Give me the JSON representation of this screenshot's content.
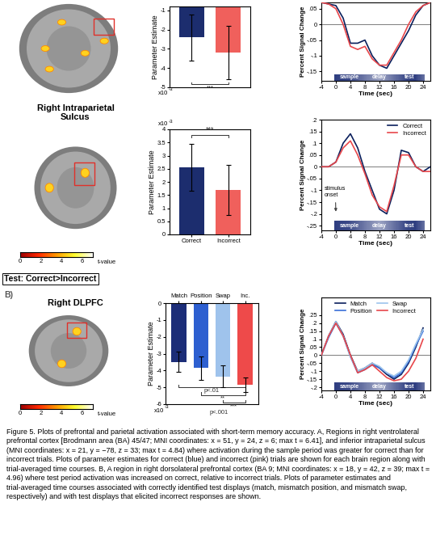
{
  "chart_data": [
    {
      "type": "bar",
      "categories": [
        null,
        null
      ],
      "values": [
        -2.4,
        -3.2
      ],
      "errors": [
        1.2,
        1.4
      ],
      "colors": [
        "#1c2d6e",
        "#f0605c"
      ],
      "ylabel": "Parameter Estimate",
      "ylim": [
        -5,
        -0.8
      ],
      "yticks": [
        -5,
        -4,
        -3,
        -2,
        -1
      ],
      "scale_label": {
        "base": "x10",
        "exponent": "-3"
      },
      "brackets": [
        {
          "x": [
            0,
            1
          ],
          "y": -4.85,
          "label": "***"
        }
      ]
    },
    {
      "type": "line",
      "x": [
        -4,
        -2,
        0,
        2,
        4,
        6,
        8,
        10,
        12,
        14,
        16,
        18,
        20,
        22,
        24,
        26
      ],
      "series": [
        {
          "color": "#0a1f5c",
          "values": [
            0.07,
            0.065,
            0.06,
            0.02,
            -0.06,
            -0.06,
            -0.05,
            -0.1,
            -0.13,
            -0.14,
            -0.1,
            -0.06,
            -0.02,
            0.03,
            0.06,
            0.07
          ]
        },
        {
          "color": "#e8474b",
          "values": [
            0.07,
            0.065,
            0.05,
            0.0,
            -0.07,
            -0.08,
            -0.07,
            -0.11,
            -0.13,
            -0.13,
            -0.09,
            -0.05,
            0.0,
            0.04,
            0.06,
            0.07
          ]
        }
      ],
      "xlabel": "Time (sec)",
      "ylabel": "Percent Signal Change",
      "xlim": [
        -4,
        26
      ],
      "xticks": [
        -4,
        0,
        4,
        8,
        12,
        16,
        20,
        24
      ],
      "ylim": [
        -0.18,
        0.07
      ],
      "yticks": [
        {
          "value": 0.05,
          "label": ".05"
        },
        0,
        {
          "value": -0.05,
          "label": "-.05"
        },
        {
          "value": -0.1,
          "label": "-.1"
        },
        {
          "value": -0.15,
          "label": "-.15"
        }
      ],
      "phases": [
        "sample",
        "delay",
        "test"
      ]
    },
    {
      "type": "bar",
      "categories": [
        "Correct",
        "Incorrect"
      ],
      "values": [
        2.55,
        1.7
      ],
      "errors": [
        0.9,
        0.95
      ],
      "colors": [
        "#1c2d6e",
        "#f0605c"
      ],
      "ylabel": "Parameter Estimate",
      "ylim": [
        0,
        4
      ],
      "yticks": [
        0,
        0.5,
        1,
        1.5,
        2,
        2.5,
        3,
        3.5,
        4
      ],
      "scale_label": {
        "base": "x10",
        "exponent": "-3"
      },
      "brackets": [
        {
          "x": [
            0,
            1
          ],
          "y": 3.8,
          "label": "***"
        }
      ]
    },
    {
      "type": "line",
      "x": [
        -4,
        -2,
        0,
        2,
        4,
        6,
        8,
        10,
        12,
        14,
        16,
        18,
        20,
        22,
        24,
        26
      ],
      "series": [
        {
          "name": "Correct",
          "color": "#0a1f5c",
          "values": [
            0.0,
            0.0,
            0.02,
            0.1,
            0.14,
            0.08,
            -0.02,
            -0.1,
            -0.18,
            -0.2,
            -0.1,
            0.07,
            0.06,
            0.0,
            -0.02,
            0.0
          ]
        },
        {
          "name": "Incorrect",
          "color": "#e8474b",
          "values": [
            0.0,
            0.0,
            0.02,
            0.08,
            0.11,
            0.05,
            -0.03,
            -0.12,
            -0.17,
            -0.19,
            -0.08,
            0.05,
            0.05,
            0.0,
            -0.02,
            -0.02
          ]
        }
      ],
      "xlabel": "Time (sec)",
      "ylabel": "Percent Signal Change",
      "xlim": [
        -4,
        26
      ],
      "xticks": [
        -4,
        0,
        4,
        8,
        12,
        16,
        20,
        24
      ],
      "ylim": [
        -0.27,
        0.2
      ],
      "yticks": [
        {
          "value": 0.2,
          "label": ".2"
        },
        {
          "value": 0.15,
          "label": ".15"
        },
        {
          "value": 0.1,
          "label": ".1"
        },
        {
          "value": 0.05,
          "label": ".05"
        },
        0,
        {
          "value": -0.05,
          "label": "-.05"
        },
        {
          "value": -0.1,
          "label": "-.1"
        },
        {
          "value": -0.15,
          "label": "-.15"
        },
        {
          "value": -0.2,
          "label": "-.2"
        },
        {
          "value": -0.25,
          "label": "-.25"
        }
      ],
      "legend": "upper right",
      "annotations": [
        {
          "text_lines": [
            "stimulus",
            "onset"
          ],
          "x": 0,
          "y": -0.2
        }
      ],
      "phases": [
        "sample",
        "delay",
        "test"
      ]
    },
    {
      "type": "bar",
      "categories": [
        "Match",
        "Position",
        "Swap",
        "Inc."
      ],
      "values": [
        -3.5,
        -3.85,
        -4.35,
        -4.85
      ],
      "errors": [
        0.6,
        0.7,
        0.65,
        0.45
      ],
      "colors": [
        "#1c2d78",
        "#2d5fd0",
        "#9fc3ec",
        "#ee4a4a"
      ],
      "ylabel": "Parameter Estimate",
      "ylim": [
        -6,
        0
      ],
      "yticks": [
        -6,
        -5,
        -4,
        -3,
        -2,
        -1,
        0
      ],
      "scale_label": {
        "base": "x10",
        "exponent": "-3"
      },
      "brackets": [
        {
          "x": [
            0,
            3
          ],
          "y": -5.0,
          "label": "p<.01"
        },
        {
          "x": [
            1,
            3
          ],
          "y": -5.45,
          "label": "**"
        },
        {
          "x": [
            2,
            3
          ],
          "y": -5.9,
          "label": "***"
        }
      ],
      "notes": [
        {
          "x": 1.8,
          "y": -6.35,
          "text": "p<.001"
        }
      ]
    },
    {
      "type": "line",
      "x": [
        -4,
        -2,
        0,
        2,
        4,
        6,
        8,
        10,
        12,
        14,
        16,
        18,
        20,
        22,
        24
      ],
      "series": [
        {
          "name": "Match",
          "color": "#0a1f5c",
          "values": [
            0.0,
            0.12,
            0.21,
            0.13,
            0.0,
            -0.1,
            -0.08,
            -0.05,
            -0.08,
            -0.12,
            -0.15,
            -0.12,
            -0.05,
            0.05,
            0.17
          ]
        },
        {
          "name": "Position",
          "color": "#3a6fd8",
          "values": [
            0.0,
            0.11,
            0.2,
            0.12,
            -0.01,
            -0.11,
            -0.09,
            -0.06,
            -0.08,
            -0.11,
            -0.14,
            -0.11,
            -0.04,
            0.06,
            0.15
          ]
        },
        {
          "name": "Swap",
          "color": "#9cc4ec",
          "values": [
            0.0,
            0.12,
            0.21,
            0.12,
            -0.01,
            -0.1,
            -0.08,
            -0.05,
            -0.07,
            -0.11,
            -0.13,
            -0.1,
            -0.03,
            0.07,
            0.16
          ]
        },
        {
          "name": "Incorrect",
          "color": "#e8474b",
          "values": [
            0.0,
            0.12,
            0.2,
            0.12,
            0.0,
            -0.11,
            -0.09,
            -0.06,
            -0.1,
            -0.14,
            -0.16,
            -0.15,
            -0.1,
            -0.02,
            0.1
          ]
        }
      ],
      "xlabel": "Time (sec)",
      "ylabel": "Percent Signal Change",
      "xlim": [
        -4,
        26
      ],
      "xticks": [
        -4,
        0,
        4,
        8,
        12,
        16,
        20,
        24
      ],
      "ylim": [
        -0.22,
        0.36
      ],
      "yticks": [
        {
          "value": 0.25,
          "label": ".25"
        },
        {
          "value": 0.2,
          "label": ".2"
        },
        {
          "value": 0.15,
          "label": ".15"
        },
        {
          "value": 0.1,
          "label": ".1"
        },
        {
          "value": 0.05,
          "label": ".05"
        },
        0,
        {
          "value": -0.05,
          "label": "-.05"
        },
        {
          "value": -0.1,
          "label": "-.1"
        },
        {
          "value": -0.15,
          "label": "-.15"
        },
        {
          "value": -0.2,
          "label": "-.2"
        }
      ],
      "legend": "upper center",
      "phases": [
        "sample",
        "delay",
        "test"
      ]
    }
  ],
  "images": [
    {
      "title_lines": []
    },
    {
      "title_lines": [
        "Right Intraparietal",
        "Sulcus"
      ],
      "colorbar": {
        "range": [
          0,
          7
        ],
        "ticks": [
          0,
          2,
          4,
          6
        ],
        "label": "t-value"
      }
    },
    {
      "header": "Test: Correct>Incorrect",
      "panel": "B)",
      "title_lines": [
        "Right DLPFC"
      ],
      "colorbar": {
        "range": [
          0,
          7
        ],
        "ticks": [
          0,
          2,
          4,
          6
        ],
        "label": "t-value"
      }
    }
  ],
  "caption": "Figure 5. Plots of prefrontal and parietal activation associated with short-term memory accuracy. A, Regions in right ventrolateral prefrontal cortex [Brodmann area (BA) 45/47; MNI coordinates: x = 51, y = 24, z = 6; max t = 6.41], and inferior intraparietal sulcus (MNI coordinates: x = 21, y = −78, z = 33; max t = 4.84) where activation during the sample period was greater for correct than for incorrect trials. Plots of parameter estimates for correct (blue) and incorrect (pink) trials are shown for each brain region along with trial-averaged time courses. B, A region in right dorsolateral prefrontal cortex (BA 9; MNI coordinates: x = 18, y = 42, z = 39; max t = 4.96) where test period activation was increased on correct, relative to incorrect trials. Plots of parameter estimates and trial-averaged time courses associated with correctly identified test displays (match, mismatch position, and mismatch swap, respectively) and with test displays that elicited incorrect responses are shown."
}
